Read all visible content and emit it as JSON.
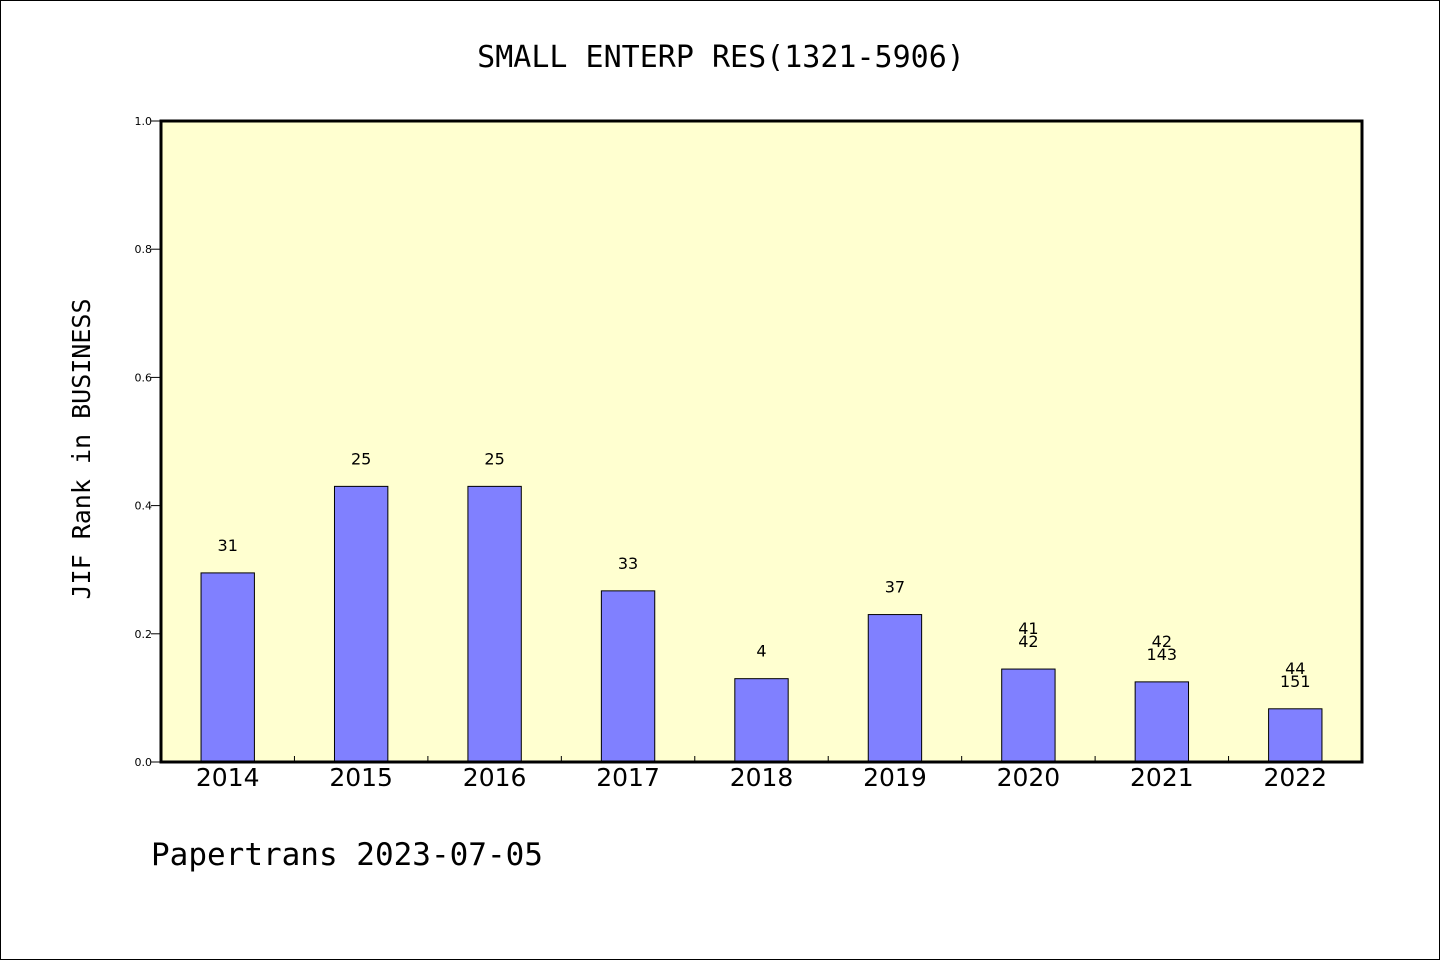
{
  "chart_data": {
    "type": "bar",
    "title": "SMALL ENTERP RES(1321-5906)",
    "ylabel": "JIF Rank in BUSINESS",
    "xlabel": "",
    "ylim": [
      0,
      1.0
    ],
    "yticks": [
      "0.0",
      "0.2",
      "0.4",
      "0.6",
      "0.8",
      "1.0"
    ],
    "grid": false,
    "categories": [
      "2014",
      "2015",
      "2016",
      "2017",
      "2018",
      "2019",
      "2020",
      "2021",
      "2022"
    ],
    "values": [
      0.295,
      0.43,
      0.43,
      0.267,
      0.13,
      0.23,
      0.145,
      0.125,
      0.083
    ],
    "bar_labels": [
      [
        "31"
      ],
      [
        "25"
      ],
      [
        "25"
      ],
      [
        "33"
      ],
      [
        "4"
      ],
      [
        "37"
      ],
      [
        "41",
        "42"
      ],
      [
        "42",
        "143"
      ],
      [
        "44",
        "151"
      ]
    ],
    "colors": {
      "plot_background": "#ffffd0",
      "bar_fill": "#8080ff",
      "bar_stroke": "#000000"
    }
  },
  "footer": {
    "watermark": "Papertrans 2023-07-05"
  }
}
